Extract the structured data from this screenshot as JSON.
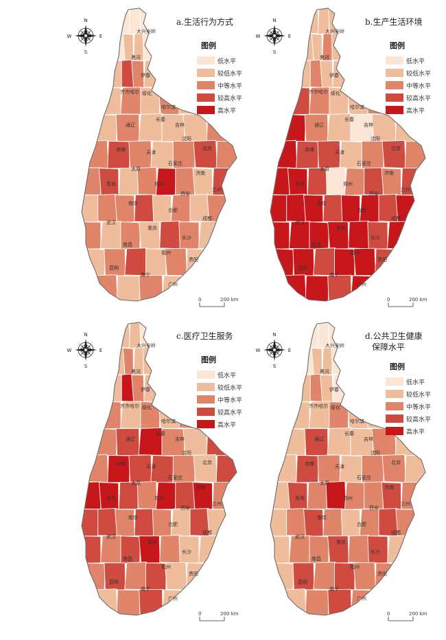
{
  "colors": [
    "#fbe6d6",
    "#f0bd9c",
    "#e0856a",
    "#cf4a3f",
    "#c8171b"
  ],
  "legend": {
    "title": "图例",
    "levels": [
      "低水平",
      "较低水平",
      "中等水平",
      "较高水平",
      "高水平"
    ]
  },
  "compass": {
    "n": "N",
    "s": "S",
    "e": "E",
    "w": "W"
  },
  "scale": {
    "zero": "0",
    "end": "200 km"
  },
  "panels": [
    {
      "id": "a",
      "title": "a.生活行为方式",
      "subtitle": "",
      "rows": [
        [
          0,
          0,
          0
        ],
        [
          0,
          1,
          1,
          0
        ],
        [
          1,
          3,
          2,
          1
        ],
        [
          1,
          2,
          1,
          2,
          1
        ],
        [
          1,
          2,
          1,
          1,
          1,
          2
        ],
        [
          2,
          3,
          2,
          1,
          2,
          3,
          2
        ],
        [
          2,
          3,
          1,
          2,
          4,
          2,
          1,
          3
        ],
        [
          1,
          2,
          2,
          3,
          1,
          2,
          1,
          2
        ],
        [
          2,
          1,
          2,
          1,
          3,
          2,
          1
        ],
        [
          1,
          2,
          3,
          1,
          2,
          1
        ],
        [
          2,
          1,
          2,
          1
        ]
      ]
    },
    {
      "id": "b",
      "title": "b.生产生活环境",
      "subtitle": "",
      "rows": [
        [
          1,
          1,
          1
        ],
        [
          1,
          1,
          2,
          1
        ],
        [
          1,
          2,
          1,
          1
        ],
        [
          3,
          2,
          1,
          1,
          2
        ],
        [
          4,
          2,
          1,
          0,
          1,
          1
        ],
        [
          4,
          3,
          3,
          1,
          2,
          3,
          2
        ],
        [
          4,
          4,
          3,
          0,
          2,
          3,
          2,
          3
        ],
        [
          4,
          4,
          4,
          3,
          4,
          4,
          3,
          4
        ],
        [
          4,
          4,
          4,
          4,
          4,
          3,
          4
        ],
        [
          4,
          4,
          3,
          4,
          4,
          3
        ],
        [
          4,
          4,
          3,
          4
        ]
      ]
    },
    {
      "id": "c",
      "title": "c.医疗卫生服务",
      "subtitle": "",
      "rows": [
        [
          1,
          1,
          0
        ],
        [
          1,
          2,
          1,
          1
        ],
        [
          1,
          4,
          2,
          1
        ],
        [
          2,
          1,
          2,
          1,
          2
        ],
        [
          2,
          3,
          4,
          2,
          1,
          3
        ],
        [
          2,
          4,
          3,
          3,
          2,
          1,
          3
        ],
        [
          4,
          4,
          3,
          2,
          4,
          3,
          4,
          2
        ],
        [
          3,
          3,
          2,
          3,
          2,
          1,
          3,
          1
        ],
        [
          3,
          2,
          3,
          4,
          2,
          1,
          1
        ],
        [
          2,
          3,
          2,
          3,
          1,
          1
        ],
        [
          1,
          2,
          3,
          1
        ]
      ]
    },
    {
      "id": "d",
      "title": "d.公共卫生健康",
      "subtitle": "保障水平",
      "rows": [
        [
          0,
          0,
          0
        ],
        [
          0,
          1,
          1,
          0
        ],
        [
          1,
          2,
          1,
          0
        ],
        [
          1,
          1,
          2,
          1,
          1
        ],
        [
          1,
          3,
          1,
          1,
          2,
          1
        ],
        [
          1,
          3,
          2,
          1,
          2,
          2,
          1
        ],
        [
          1,
          3,
          2,
          4,
          2,
          2,
          3,
          2
        ],
        [
          1,
          2,
          3,
          2,
          1,
          2,
          3,
          2
        ],
        [
          1,
          2,
          2,
          3,
          2,
          3,
          1
        ],
        [
          1,
          3,
          2,
          3,
          2,
          2
        ],
        [
          1,
          2,
          3,
          2
        ]
      ]
    }
  ],
  "city_labels": [
    "大兴安岭",
    "黑河",
    "伊春",
    "齐齐哈尔",
    "绥化",
    "哈尔滨",
    "长春",
    "吉林",
    "通辽",
    "沈阳",
    "赤峰",
    "北京",
    "天津",
    "石家庄",
    "太原",
    "济南",
    "青岛",
    "郑州",
    "西安",
    "兰州",
    "南京",
    "合肥",
    "武汉",
    "成都",
    "重庆",
    "长沙",
    "南昌",
    "福州",
    "贵阳",
    "昆明",
    "南宁",
    "广州"
  ]
}
